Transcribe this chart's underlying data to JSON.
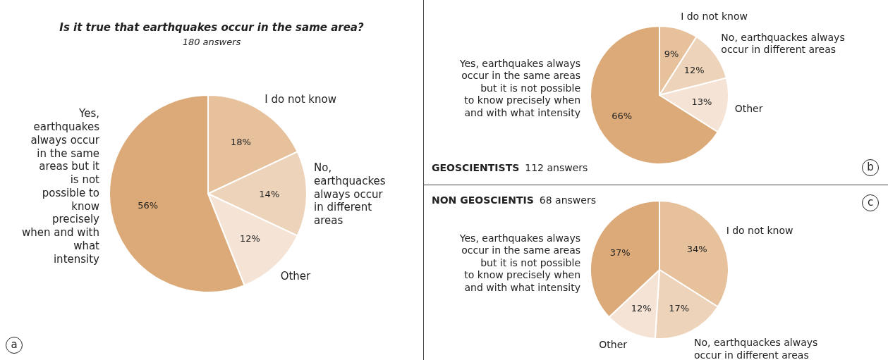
{
  "chart_data": [
    {
      "type": "pie",
      "title": "Is it true that earthquakes occur in the same area?",
      "subtitle": "180 answers",
      "categories": [
        "I do not know",
        "No, earthquackes always occur in different areas",
        "Other",
        "Yes, earthquakes always occur in the same areas but it is not possible to know precisely when and with what intensity"
      ],
      "values": [
        18,
        14,
        12,
        56
      ],
      "value_labels": [
        "18%",
        "14%",
        "12%",
        "56%"
      ],
      "colors": [
        "#e6c19c",
        "#edd3b9",
        "#f5e4d6",
        "#dcaa78"
      ],
      "annotations": [
        "a"
      ]
    },
    {
      "type": "pie",
      "title": "GEOSCIENTISTS",
      "subtitle": "112 answers",
      "categories": [
        "I do not know",
        "No, earthquackes always occur in different areas",
        "Other",
        "Yes, earthquakes always occur in the same areas but it is not possible to know precisely when and with what intensity"
      ],
      "values": [
        9,
        12,
        13,
        66
      ],
      "value_labels": [
        "9%",
        "12%",
        "13%",
        "66%"
      ],
      "colors": [
        "#e6c19c",
        "#edd3b9",
        "#f5e4d6",
        "#dcaa78"
      ],
      "annotations": [
        "b"
      ]
    },
    {
      "type": "pie",
      "title": "NON GEOSCIENTIS",
      "subtitle": "68 answers",
      "categories": [
        "I do not know",
        "No, earthquackes always occur in different areas",
        "Other",
        "Yes, earthquakes always occur in the same areas but it is not possible to know precisely when and with what intensity"
      ],
      "values": [
        34,
        17,
        12,
        37
      ],
      "value_labels": [
        "34%",
        "17%",
        "12%",
        "37%"
      ],
      "colors": [
        "#e6c19c",
        "#edd3b9",
        "#f5e4d6",
        "#dcaa78"
      ],
      "annotations": [
        "c"
      ]
    }
  ]
}
